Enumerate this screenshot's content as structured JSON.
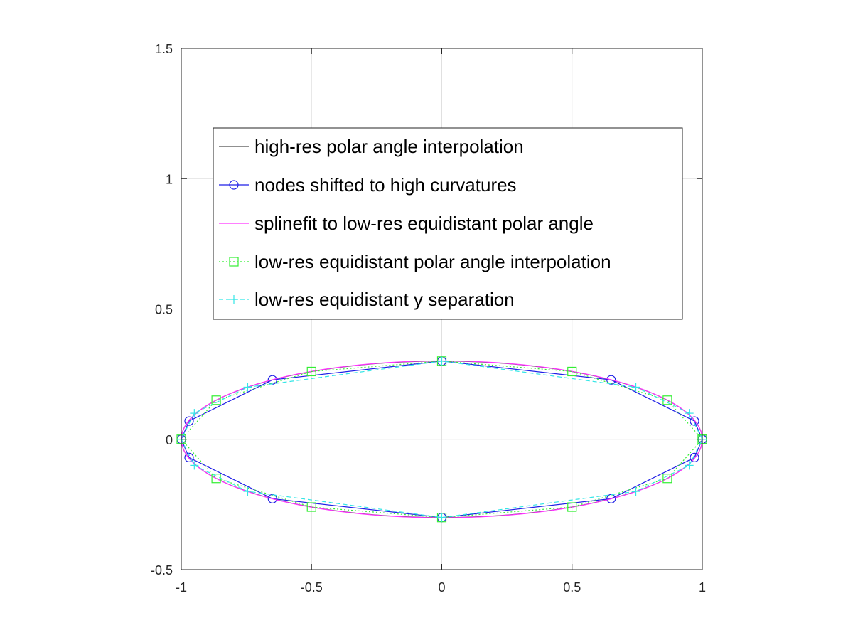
{
  "chart_data": {
    "type": "line",
    "title": "",
    "xlabel": "",
    "ylabel": "",
    "xlim": [
      -1,
      1
    ],
    "ylim": [
      -0.5,
      1.5
    ],
    "xticks": [
      -1,
      -0.5,
      0,
      0.5,
      1
    ],
    "xtick_labels": [
      "-1",
      "-0.5",
      "0",
      "0.5",
      "1"
    ],
    "yticks": [
      -0.5,
      0,
      0.5,
      1,
      1.5
    ],
    "ytick_labels": [
      "-0.5",
      "0",
      "0.5",
      "1",
      "1.5"
    ],
    "grid": true,
    "legend_position": "top",
    "ellipse": {
      "a": 1.0,
      "b": 0.3
    },
    "series": [
      {
        "name": "high-res polar angle interpolation",
        "color": "#4d4d4d",
        "line_style": "solid",
        "marker": "none",
        "param": "polar-highres",
        "samples": 120
      },
      {
        "name": "nodes shifted to high curvatures",
        "color": "#1f1fe6",
        "line_style": "solid",
        "marker": "circle",
        "x": [
          1.0,
          0.97,
          0.65,
          0.0,
          -0.65,
          -0.97,
          -1.0,
          -0.97,
          -0.65,
          0.0,
          0.65,
          0.97,
          1.0
        ],
        "y": [
          0.0,
          0.07,
          0.228,
          0.3,
          0.228,
          0.07,
          0.0,
          -0.07,
          -0.228,
          -0.3,
          -0.228,
          -0.07,
          0.0
        ]
      },
      {
        "name": "splinefit to low-res equidistant polar angle",
        "color": "#ff33ff",
        "line_style": "solid",
        "marker": "none",
        "param": "polar-spline",
        "samples": 120
      },
      {
        "name": "low-res equidistant polar angle interpolation",
        "color": "#33ee33",
        "line_style": "dotted",
        "marker": "square",
        "x": [
          1.0,
          0.866,
          0.5,
          0.0,
          -0.5,
          -0.866,
          -1.0,
          -0.866,
          -0.5,
          0.0,
          0.5,
          0.866,
          1.0
        ],
        "y": [
          0.0,
          0.15,
          0.26,
          0.3,
          0.26,
          0.15,
          0.0,
          -0.15,
          -0.26,
          -0.3,
          -0.26,
          -0.15,
          0.0
        ]
      },
      {
        "name": "low-res equidistant y separation",
        "color": "#33e6e6",
        "line_style": "dashed",
        "marker": "plus",
        "x": [
          1.0,
          0.95,
          0.745,
          0.0,
          -0.745,
          -0.95,
          -1.0,
          -0.95,
          -0.745,
          0.0,
          0.745,
          0.95,
          1.0
        ],
        "y": [
          0.0,
          0.1,
          0.2,
          0.3,
          0.2,
          0.1,
          0.0,
          -0.1,
          -0.2,
          -0.3,
          -0.2,
          -0.1,
          0.0
        ]
      }
    ]
  }
}
